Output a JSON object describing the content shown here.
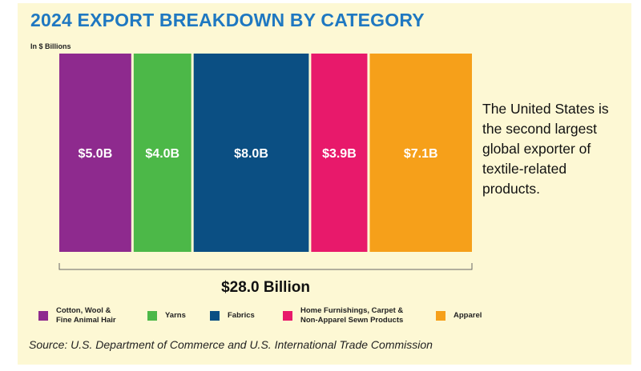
{
  "title": "2024 EXPORT BREAKDOWN BY CATEGORY",
  "unit_label": "In $ Billions",
  "total_label": "$28.0 Billion",
  "side_note": "The United States is the second largest global exporter of textile-related products.",
  "source": "Source: U.S. Department of Commerce and U.S. International Trade Commission",
  "chart_data": {
    "type": "bar",
    "layout": "proportional stacked horizontal (100% width)",
    "title": "2024 EXPORT BREAKDOWN BY CATEGORY",
    "ylabel": "In $ Billions",
    "total": 28.0,
    "categories": [
      "Cotton, Wool & Fine Animal Hair",
      "Yarns",
      "Fabrics",
      "Home Furnishings, Carpet & Non-Apparel Sewn Products",
      "Apparel"
    ],
    "values": [
      5.0,
      4.0,
      8.0,
      3.9,
      7.1
    ],
    "value_labels": [
      "$5.0B",
      "$4.0B",
      "$8.0B",
      "$3.9B",
      "$7.1B"
    ],
    "colors": [
      "#8e2a8e",
      "#4cb848",
      "#0b4f83",
      "#e8196b",
      "#f6a01a"
    ],
    "legend_position": "bottom",
    "grid": false
  },
  "legend": [
    {
      "label": "Cotton, Wool &\nFine Animal Hair",
      "color": "#8e2a8e"
    },
    {
      "label": "Yarns",
      "color": "#4cb848"
    },
    {
      "label": "Fabrics",
      "color": "#0b4f83"
    },
    {
      "label": "Home Furnishings, Carpet &\nNon-Apparel Sewn Products",
      "color": "#e8196b"
    },
    {
      "label": "Apparel",
      "color": "#f6a01a"
    }
  ]
}
